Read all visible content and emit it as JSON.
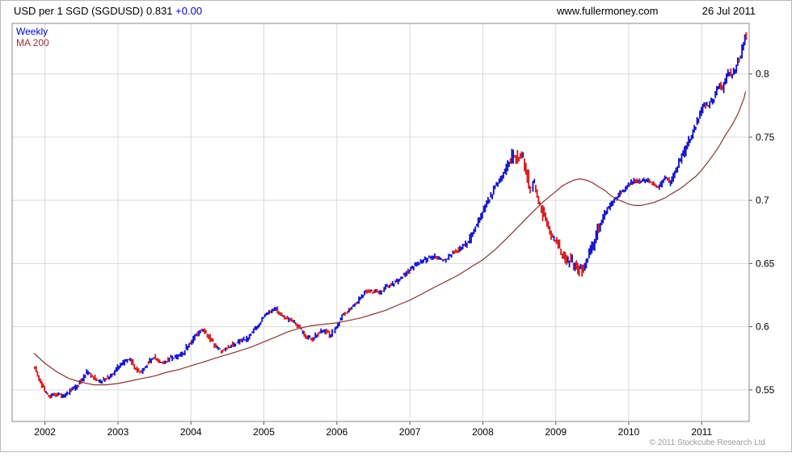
{
  "header": {
    "title": "USD per 1 SGD (SGDUSD)",
    "price": "0.831",
    "change": "+0.00",
    "website": "www.fullermoney.com",
    "date": "26 Jul 2011"
  },
  "legend": [
    {
      "label": "Weekly",
      "color": "#0000cc"
    },
    {
      "label": "MA 200",
      "color": "#993333"
    }
  ],
  "footer": {
    "copyright": "© 2011 Stockcube Research Ltd"
  },
  "colors": {
    "grid": "#d9d9d9",
    "plot_border": "#888888",
    "axis_text": "#000000",
    "tick": "#555555",
    "candle_up": "#1616cc",
    "candle_down": "#d42020",
    "ma_line": "#8a3333"
  },
  "chart_data": {
    "type": "line",
    "title": "USD per 1 SGD (SGDUSD) Weekly with 200-week MA",
    "xlabel": "",
    "ylabel": "USD per 1 SGD",
    "x_ticks": [
      2002,
      2003,
      2004,
      2005,
      2006,
      2007,
      2008,
      2009,
      2010,
      2011
    ],
    "y_ticks": [
      0.55,
      0.6,
      0.65,
      0.7,
      0.75,
      0.8
    ],
    "x_range": [
      2001.55,
      2011.65
    ],
    "y_range": [
      0.525,
      0.84
    ],
    "grid": true,
    "legend_position": "top-left",
    "series": [
      {
        "name": "Weekly",
        "style": "candles",
        "color_up": "#1616cc",
        "color_down": "#d42020",
        "points": [
          [
            2001.85,
            0.569
          ],
          [
            2001.92,
            0.56
          ],
          [
            2002.0,
            0.549
          ],
          [
            2002.08,
            0.545
          ],
          [
            2002.17,
            0.547
          ],
          [
            2002.25,
            0.544
          ],
          [
            2002.33,
            0.548
          ],
          [
            2002.42,
            0.552
          ],
          [
            2002.5,
            0.557
          ],
          [
            2002.58,
            0.564
          ],
          [
            2002.67,
            0.56
          ],
          [
            2002.75,
            0.556
          ],
          [
            2002.83,
            0.559
          ],
          [
            2002.92,
            0.561
          ],
          [
            2003.0,
            0.568
          ],
          [
            2003.08,
            0.572
          ],
          [
            2003.17,
            0.574
          ],
          [
            2003.25,
            0.567
          ],
          [
            2003.33,
            0.564
          ],
          [
            2003.42,
            0.571
          ],
          [
            2003.5,
            0.576
          ],
          [
            2003.58,
            0.571
          ],
          [
            2003.67,
            0.573
          ],
          [
            2003.75,
            0.576
          ],
          [
            2003.83,
            0.577
          ],
          [
            2003.92,
            0.581
          ],
          [
            2004.0,
            0.588
          ],
          [
            2004.08,
            0.593
          ],
          [
            2004.17,
            0.598
          ],
          [
            2004.25,
            0.592
          ],
          [
            2004.33,
            0.586
          ],
          [
            2004.42,
            0.581
          ],
          [
            2004.5,
            0.583
          ],
          [
            2004.58,
            0.586
          ],
          [
            2004.67,
            0.589
          ],
          [
            2004.75,
            0.59
          ],
          [
            2004.83,
            0.594
          ],
          [
            2004.92,
            0.601
          ],
          [
            2005.0,
            0.608
          ],
          [
            2005.08,
            0.612
          ],
          [
            2005.17,
            0.614
          ],
          [
            2005.25,
            0.609
          ],
          [
            2005.33,
            0.606
          ],
          [
            2005.42,
            0.604
          ],
          [
            2005.5,
            0.599
          ],
          [
            2005.58,
            0.592
          ],
          [
            2005.67,
            0.59
          ],
          [
            2005.75,
            0.595
          ],
          [
            2005.83,
            0.597
          ],
          [
            2005.92,
            0.593
          ],
          [
            2006.0,
            0.6
          ],
          [
            2006.08,
            0.609
          ],
          [
            2006.17,
            0.613
          ],
          [
            2006.25,
            0.617
          ],
          [
            2006.33,
            0.624
          ],
          [
            2006.42,
            0.629
          ],
          [
            2006.5,
            0.628
          ],
          [
            2006.58,
            0.626
          ],
          [
            2006.67,
            0.631
          ],
          [
            2006.75,
            0.633
          ],
          [
            2006.83,
            0.636
          ],
          [
            2006.92,
            0.641
          ],
          [
            2007.0,
            0.645
          ],
          [
            2007.08,
            0.649
          ],
          [
            2007.17,
            0.652
          ],
          [
            2007.25,
            0.654
          ],
          [
            2007.33,
            0.656
          ],
          [
            2007.42,
            0.654
          ],
          [
            2007.5,
            0.652
          ],
          [
            2007.58,
            0.657
          ],
          [
            2007.67,
            0.661
          ],
          [
            2007.75,
            0.664
          ],
          [
            2007.83,
            0.669
          ],
          [
            2007.92,
            0.68
          ],
          [
            2008.0,
            0.691
          ],
          [
            2008.08,
            0.7
          ],
          [
            2008.17,
            0.709
          ],
          [
            2008.25,
            0.717
          ],
          [
            2008.33,
            0.727
          ],
          [
            2008.42,
            0.736
          ],
          [
            2008.5,
            0.734
          ],
          [
            2008.54,
            0.738
          ],
          [
            2008.58,
            0.728
          ],
          [
            2008.63,
            0.716
          ],
          [
            2008.67,
            0.707
          ],
          [
            2008.71,
            0.713
          ],
          [
            2008.75,
            0.703
          ],
          [
            2008.83,
            0.69
          ],
          [
            2008.92,
            0.676
          ],
          [
            2009.0,
            0.668
          ],
          [
            2009.08,
            0.659
          ],
          [
            2009.17,
            0.651
          ],
          [
            2009.21,
            0.656
          ],
          [
            2009.25,
            0.649
          ],
          [
            2009.33,
            0.646
          ],
          [
            2009.38,
            0.644
          ],
          [
            2009.42,
            0.651
          ],
          [
            2009.5,
            0.663
          ],
          [
            2009.58,
            0.676
          ],
          [
            2009.67,
            0.689
          ],
          [
            2009.75,
            0.696
          ],
          [
            2009.83,
            0.702
          ],
          [
            2009.92,
            0.707
          ],
          [
            2010.0,
            0.712
          ],
          [
            2010.08,
            0.716
          ],
          [
            2010.17,
            0.714
          ],
          [
            2010.25,
            0.717
          ],
          [
            2010.33,
            0.713
          ],
          [
            2010.42,
            0.71
          ],
          [
            2010.5,
            0.718
          ],
          [
            2010.58,
            0.714
          ],
          [
            2010.67,
            0.726
          ],
          [
            2010.75,
            0.736
          ],
          [
            2010.83,
            0.747
          ],
          [
            2010.92,
            0.759
          ],
          [
            2011.0,
            0.77
          ],
          [
            2011.04,
            0.777
          ],
          [
            2011.08,
            0.774
          ],
          [
            2011.17,
            0.781
          ],
          [
            2011.25,
            0.792
          ],
          [
            2011.29,
            0.787
          ],
          [
            2011.33,
            0.796
          ],
          [
            2011.38,
            0.801
          ],
          [
            2011.42,
            0.797
          ],
          [
            2011.46,
            0.803
          ],
          [
            2011.5,
            0.809
          ],
          [
            2011.54,
            0.815
          ],
          [
            2011.58,
            0.826
          ],
          [
            2011.6,
            0.831
          ]
        ]
      },
      {
        "name": "MA 200",
        "style": "line",
        "color": "#8a3333",
        "points": [
          [
            2001.85,
            0.579
          ],
          [
            2002.0,
            0.571
          ],
          [
            2002.17,
            0.564
          ],
          [
            2002.33,
            0.559
          ],
          [
            2002.5,
            0.556
          ],
          [
            2002.67,
            0.554
          ],
          [
            2002.83,
            0.554
          ],
          [
            2003.0,
            0.555
          ],
          [
            2003.17,
            0.557
          ],
          [
            2003.33,
            0.559
          ],
          [
            2003.5,
            0.561
          ],
          [
            2003.67,
            0.564
          ],
          [
            2003.83,
            0.566
          ],
          [
            2004.0,
            0.569
          ],
          [
            2004.17,
            0.572
          ],
          [
            2004.33,
            0.575
          ],
          [
            2004.5,
            0.578
          ],
          [
            2004.67,
            0.581
          ],
          [
            2004.83,
            0.584
          ],
          [
            2005.0,
            0.588
          ],
          [
            2005.17,
            0.592
          ],
          [
            2005.33,
            0.596
          ],
          [
            2005.5,
            0.599
          ],
          [
            2005.67,
            0.601
          ],
          [
            2005.83,
            0.602
          ],
          [
            2006.0,
            0.603
          ],
          [
            2006.17,
            0.605
          ],
          [
            2006.33,
            0.607
          ],
          [
            2006.5,
            0.61
          ],
          [
            2006.67,
            0.613
          ],
          [
            2006.83,
            0.617
          ],
          [
            2007.0,
            0.621
          ],
          [
            2007.17,
            0.626
          ],
          [
            2007.33,
            0.631
          ],
          [
            2007.5,
            0.636
          ],
          [
            2007.67,
            0.641
          ],
          [
            2007.83,
            0.647
          ],
          [
            2008.0,
            0.653
          ],
          [
            2008.17,
            0.661
          ],
          [
            2008.33,
            0.67
          ],
          [
            2008.5,
            0.68
          ],
          [
            2008.67,
            0.69
          ],
          [
            2008.83,
            0.699
          ],
          [
            2009.0,
            0.707
          ],
          [
            2009.08,
            0.711
          ],
          [
            2009.17,
            0.714
          ],
          [
            2009.25,
            0.716
          ],
          [
            2009.33,
            0.717
          ],
          [
            2009.42,
            0.716
          ],
          [
            2009.5,
            0.714
          ],
          [
            2009.58,
            0.711
          ],
          [
            2009.67,
            0.708
          ],
          [
            2009.75,
            0.704
          ],
          [
            2009.83,
            0.701
          ],
          [
            2009.92,
            0.699
          ],
          [
            2010.0,
            0.697
          ],
          [
            2010.08,
            0.696
          ],
          [
            2010.17,
            0.696
          ],
          [
            2010.25,
            0.697
          ],
          [
            2010.33,
            0.698
          ],
          [
            2010.42,
            0.7
          ],
          [
            2010.5,
            0.702
          ],
          [
            2010.58,
            0.705
          ],
          [
            2010.67,
            0.708
          ],
          [
            2010.75,
            0.711
          ],
          [
            2010.83,
            0.715
          ],
          [
            2010.92,
            0.719
          ],
          [
            2011.0,
            0.724
          ],
          [
            2011.08,
            0.73
          ],
          [
            2011.17,
            0.737
          ],
          [
            2011.25,
            0.744
          ],
          [
            2011.33,
            0.752
          ],
          [
            2011.42,
            0.76
          ],
          [
            2011.5,
            0.769
          ],
          [
            2011.58,
            0.781
          ],
          [
            2011.6,
            0.786
          ]
        ]
      }
    ]
  }
}
